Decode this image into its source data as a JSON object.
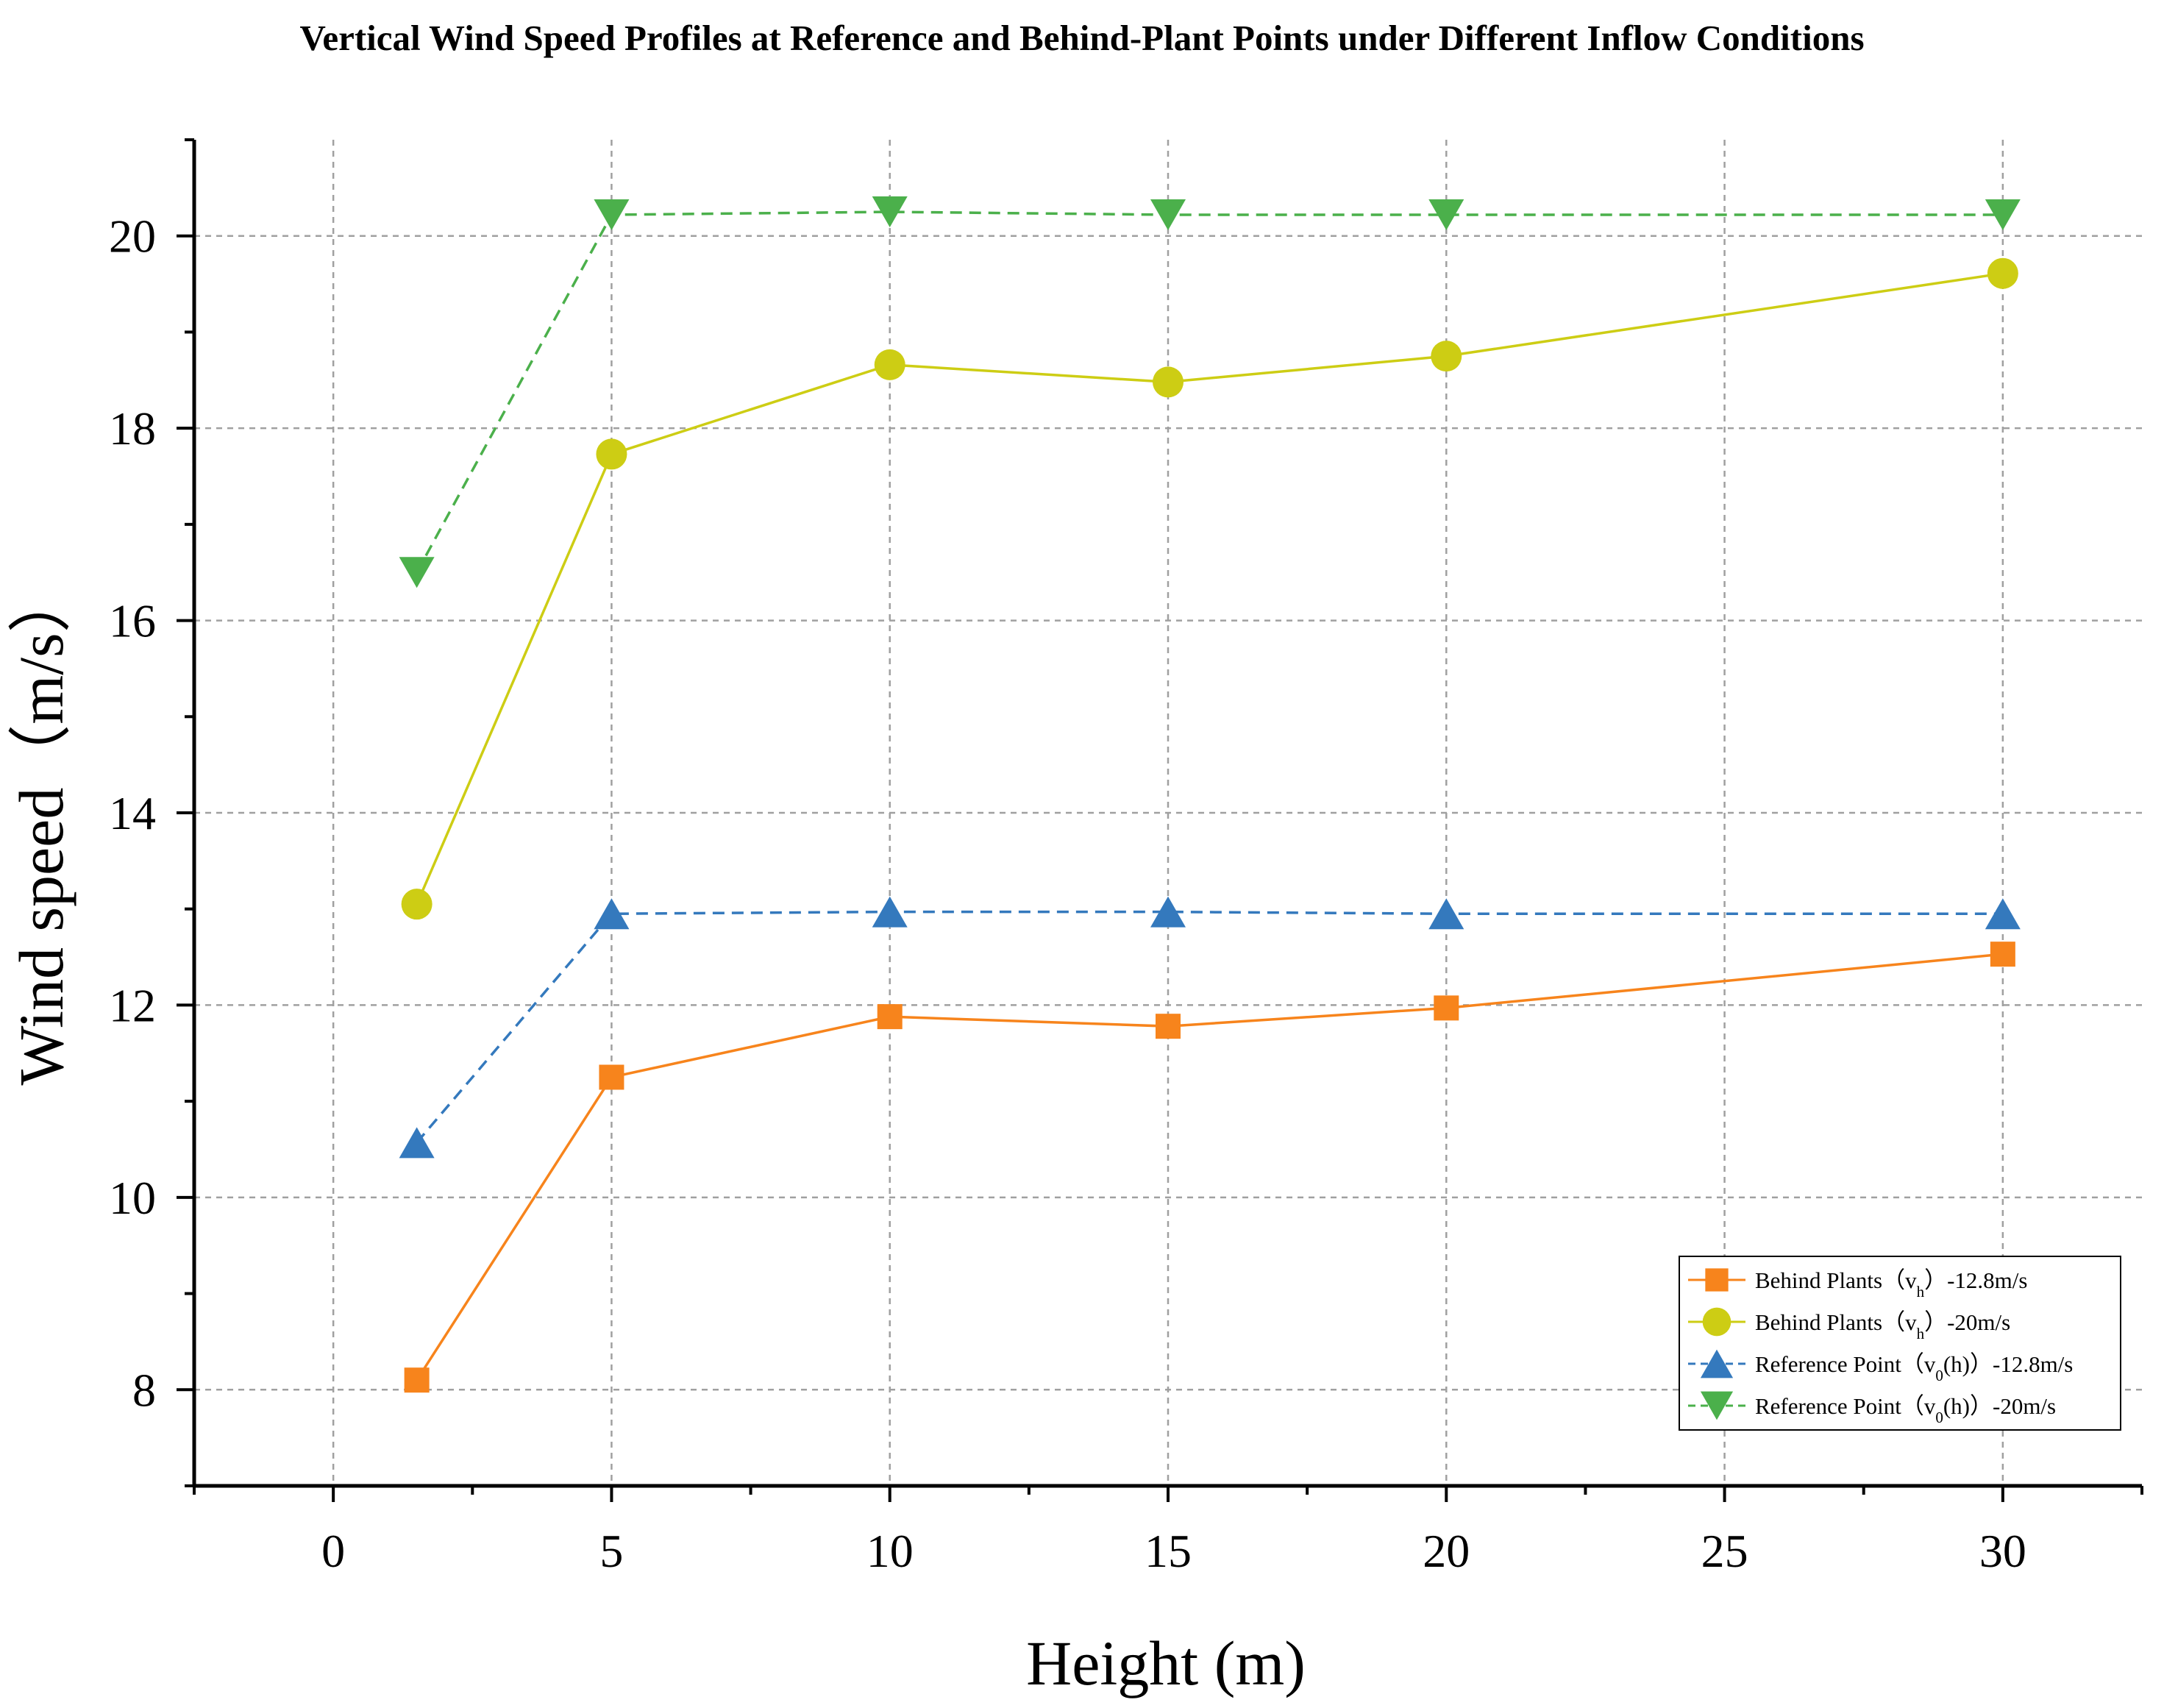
{
  "chart_data": {
    "type": "line",
    "title": "Vertical Wind Speed Profiles at Reference and Behind-Plant Points under Different Inflow Conditions",
    "xlabel": "Height (m)",
    "ylabel": "Wind speed（m/s）",
    "xlim": [
      -2.5,
      32.5
    ],
    "ylim": [
      7,
      21
    ],
    "x_ticks": [
      0,
      5,
      10,
      15,
      20,
      25,
      30
    ],
    "y_ticks": [
      8,
      10,
      12,
      14,
      16,
      18,
      20
    ],
    "x_tick_labels": [
      "0",
      "5",
      "10",
      "15",
      "20",
      "25",
      "30"
    ],
    "y_tick_labels": [
      "8",
      "10",
      "12",
      "14",
      "16",
      "18",
      "20"
    ],
    "grid": true,
    "legend_position": "bottom-right",
    "series": [
      {
        "name": "Behind Plants（vh）-12.8m/s",
        "legend": {
          "pre": "Behind Plants（v",
          "sub": "h",
          "post": "）-12.8m/s"
        },
        "color": "#f7841c",
        "marker": "square",
        "line_style": "solid",
        "x": [
          1.5,
          5,
          10,
          15,
          20,
          30
        ],
        "values": [
          8.1,
          11.25,
          11.88,
          11.78,
          11.97,
          12.53
        ]
      },
      {
        "name": "Behind Plants（vh）-20m/s",
        "legend": {
          "pre": "Behind Plants（v",
          "sub": "h",
          "post": "）-20m/s"
        },
        "color": "#cdcd14",
        "marker": "circle",
        "line_style": "solid",
        "x": [
          1.5,
          5,
          10,
          15,
          20,
          30
        ],
        "values": [
          13.05,
          17.73,
          18.66,
          18.48,
          18.75,
          19.61
        ]
      },
      {
        "name": "Reference Point（v0(h)）-12.8m/s",
        "legend": {
          "pre": "Reference Point（v",
          "sub": "0",
          "post": "(h)）-12.8m/s"
        },
        "color": "#3479bd",
        "marker": "triangle-up",
        "line_style": "dashed",
        "x": [
          1.5,
          5,
          10,
          15,
          20,
          30
        ],
        "values": [
          10.57,
          12.95,
          12.97,
          12.97,
          12.95,
          12.95
        ]
      },
      {
        "name": "Reference Point（v0(h)）-20m/s",
        "legend": {
          "pre": "Reference Point（v",
          "sub": "0",
          "post": "(h)）-20m/s"
        },
        "color": "#4bb04b",
        "marker": "triangle-down",
        "line_style": "dashed",
        "x": [
          1.5,
          5,
          10,
          15,
          20,
          30
        ],
        "values": [
          16.5,
          20.22,
          20.25,
          20.22,
          20.22,
          20.22
        ]
      }
    ]
  }
}
